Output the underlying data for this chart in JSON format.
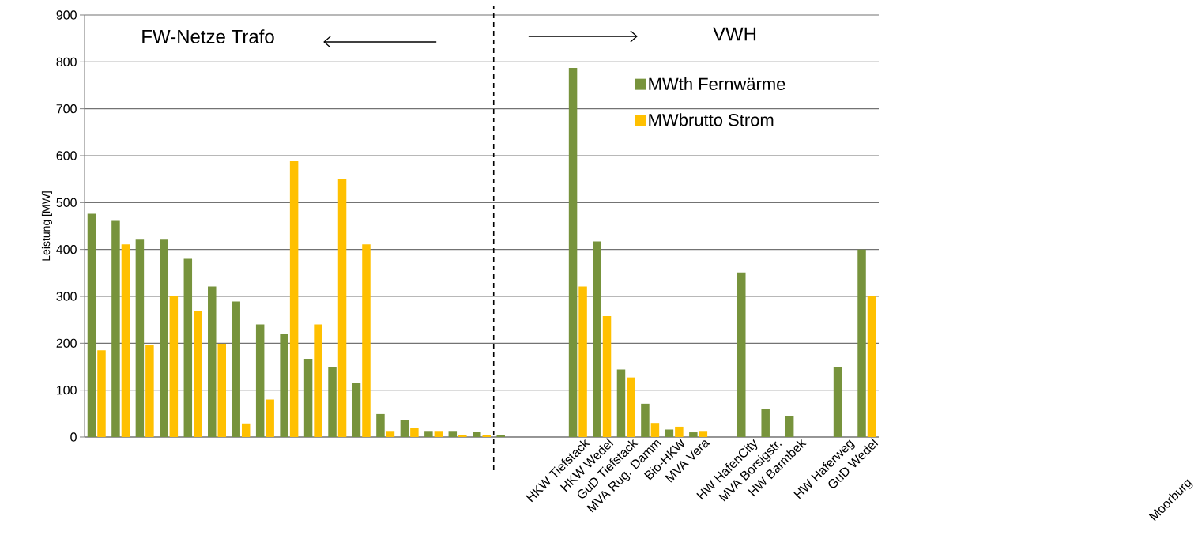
{
  "chart_data": {
    "type": "bar",
    "ylabel": "Leistung [MW]",
    "categories": [
      null,
      null,
      null,
      null,
      null,
      null,
      null,
      null,
      null,
      null,
      null,
      null,
      null,
      null,
      null,
      null,
      null,
      null,
      null,
      null,
      "HKW Tiefstack",
      "HKW Wedel",
      "GuD Tiefstack",
      "MVA Rug. Damm",
      "Bio-HKW",
      "MVA Vera",
      null,
      "HW HafenCity",
      "MVA Borsigstr.",
      "HW Barmbek",
      null,
      "HW Haferweg",
      "GuD Wedel"
    ],
    "series": [
      {
        "name": "MWth Fernwärme",
        "color": "#77933c",
        "values": [
          476,
          461,
          421,
          421,
          380,
          321,
          289,
          240,
          220,
          167,
          150,
          115,
          49,
          37,
          13,
          13,
          11,
          5,
          null,
          null,
          787,
          417,
          144,
          71,
          16,
          10,
          null,
          351,
          60,
          45,
          null,
          150,
          400
        ]
      },
      {
        "name": "MWbrutto Strom",
        "color": "#ffc000",
        "values": [
          185,
          411,
          196,
          301,
          269,
          199,
          29,
          80,
          588,
          240,
          551,
          411,
          13,
          19,
          13,
          5,
          5,
          null,
          null,
          null,
          321,
          258,
          127,
          30,
          22,
          13,
          null,
          null,
          null,
          null,
          null,
          null,
          300
        ]
      }
    ],
    "ylim": [
      0,
      900
    ],
    "yticks": [
      0,
      100,
      200,
      300,
      400,
      500,
      600,
      700,
      800,
      900
    ],
    "grid": "y",
    "legend": "top right",
    "annotations": [
      "FW-Netze Trafo",
      "VWH",
      "Moorburg"
    ]
  }
}
